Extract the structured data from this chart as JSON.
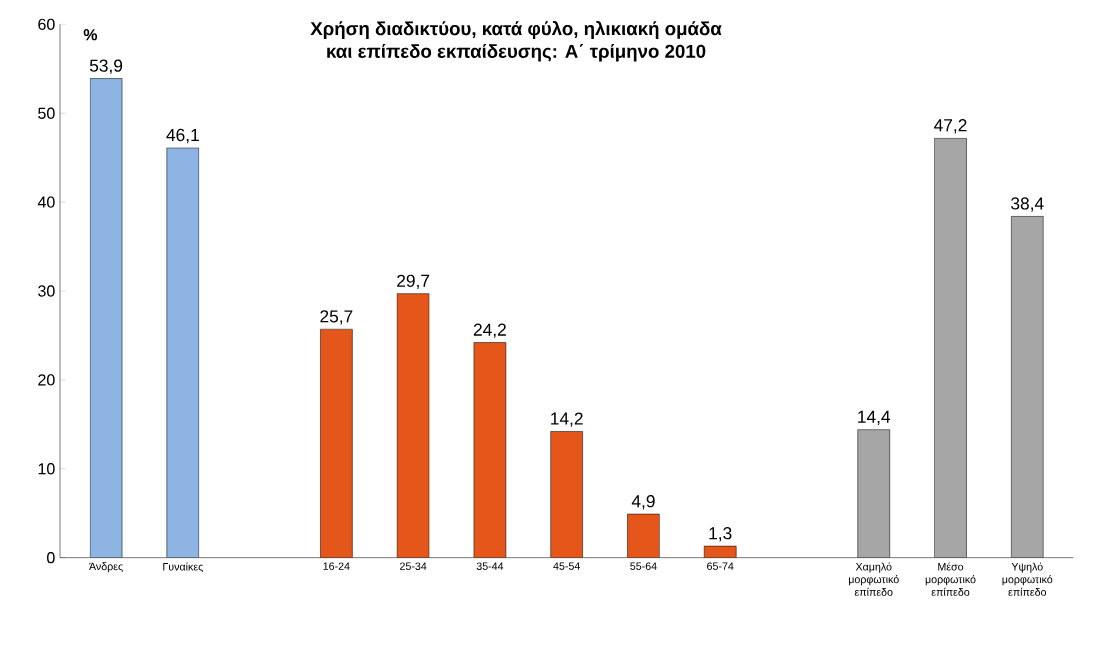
{
  "chart_data": {
    "type": "bar",
    "title": "Χρήση διαδικτύου, κατά φύλο, ηλικιακή ομάδα\nκαι επίπεδο εκπαίδευσης: Α΄ τρίμηνο 2010",
    "ylabel": "%",
    "categories": [
      "Άνδρες",
      "Γυναίκες",
      null,
      "16-24",
      "25-34",
      "35-44",
      "45-54",
      "55-64",
      "65-74",
      null,
      "Χαμηλό μορφωτικό επίπεδο",
      "Μέσο μορφωτικό επίπεδο",
      "Υψηλό μορφωτικό επίπεδο"
    ],
    "values": [
      53.9,
      46.1,
      null,
      25.7,
      29.7,
      24.2,
      14.2,
      4.9,
      1.3,
      null,
      14.4,
      47.2,
      38.4
    ],
    "colors": [
      "#8db4e2",
      "#8db4e2",
      null,
      "#e5561a",
      "#e5561a",
      "#e5561a",
      "#e5561a",
      "#e5561a",
      "#e5561a",
      null,
      "#a6a6a6",
      "#a6a6a6",
      "#a6a6a6"
    ],
    "value_labels": [
      "53,9",
      "46,1",
      null,
      "25,7",
      "29,7",
      "24,2",
      "14,2",
      "4,9",
      "1,3",
      null,
      "14,4",
      "47,2",
      "38,4"
    ],
    "ylim": [
      0,
      60
    ],
    "yticks": [
      0,
      10,
      20,
      30,
      40,
      50,
      60
    ]
  }
}
